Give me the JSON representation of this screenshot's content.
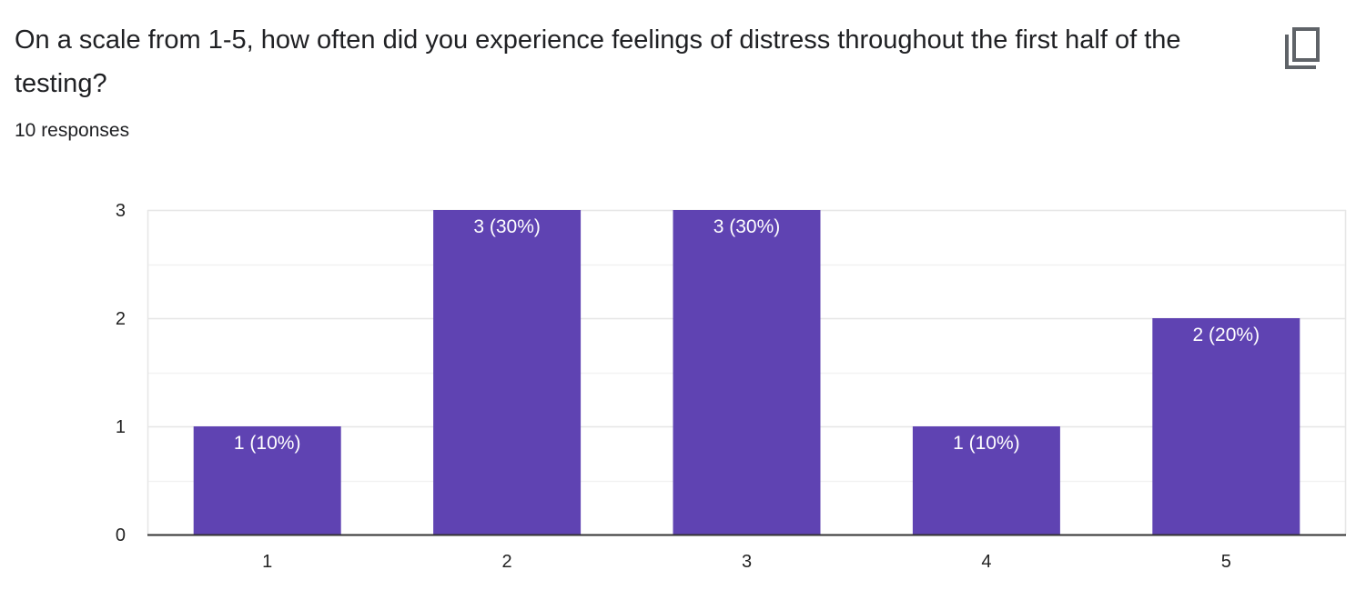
{
  "question": {
    "title": "On a scale from 1-5, how often did you experience feelings of distress throughout the first half of the testing?",
    "responses_count": "10 responses"
  },
  "toolbar": {
    "copy_icon": "copy-icon"
  },
  "colors": {
    "bar": "#5f43b2",
    "grid": "#ebebeb",
    "axis": "#333333"
  },
  "chart_data": {
    "type": "bar",
    "categories": [
      "1",
      "2",
      "3",
      "4",
      "5"
    ],
    "values": [
      1,
      3,
      3,
      1,
      2
    ],
    "data_labels": [
      "1 (10%)",
      "3 (30%)",
      "3 (30%)",
      "1 (10%)",
      "2 (20%)"
    ],
    "title": "",
    "xlabel": "",
    "ylabel": "",
    "ylim": [
      0,
      3
    ],
    "yticks": [
      "0",
      "1",
      "2",
      "3"
    ],
    "grid": true,
    "legend": "none"
  }
}
